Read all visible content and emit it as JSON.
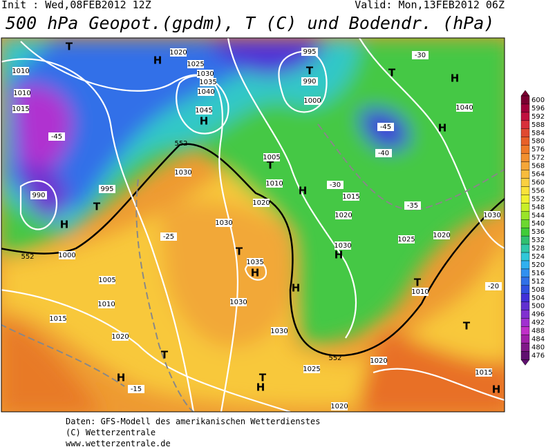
{
  "header": {
    "init": "Init : Wed,08FEB2012 12Z",
    "valid": "Valid: Mon,13FEB2012 06Z",
    "title": "500 hPa Geopot.(gpdm), T (C) und Bodendr. (hPa)"
  },
  "colorbar": {
    "levels": [
      600,
      596,
      592,
      588,
      584,
      580,
      576,
      572,
      568,
      564,
      560,
      556,
      552,
      548,
      544,
      540,
      536,
      532,
      528,
      524,
      520,
      516,
      512,
      508,
      504,
      500,
      496,
      492,
      488,
      484,
      480,
      476
    ],
    "colors": [
      "#7a0030",
      "#a0003a",
      "#c0103f",
      "#d8303a",
      "#e04a30",
      "#e86028",
      "#ef7a28",
      "#f29030",
      "#f5a638",
      "#f8bc3c",
      "#fad040",
      "#fae23a",
      "#f0f030",
      "#c8ee28",
      "#9ae428",
      "#6cd830",
      "#40cc38",
      "#30c070",
      "#30c8a8",
      "#30c8d8",
      "#30b0f0",
      "#3090f0",
      "#3070e8",
      "#3050e0",
      "#4030d8",
      "#6030d0",
      "#8030d0",
      "#a030d0",
      "#c030c8",
      "#a020a8",
      "#801888",
      "#601070"
    ]
  },
  "map": {
    "labels": [
      "T",
      "1010",
      "1015",
      "1010",
      "H",
      "1020",
      "1025",
      "1030",
      "1035",
      "1040",
      "1045",
      "H",
      "995",
      "T",
      "990",
      "1000",
      "T",
      "H",
      "1040",
      "H",
      "-45",
      "-40",
      "T",
      "1005",
      "1010",
      "1020",
      "H",
      "1015",
      "1020",
      "1030",
      "995",
      "T",
      "H",
      "1000",
      "990",
      "-45",
      "1030",
      "T",
      "1035",
      "H",
      "H",
      "1030",
      "H",
      "1030",
      "1030",
      "1025",
      "T",
      "1010",
      "1020",
      "1030",
      "1005",
      "1010",
      "1015",
      "1020",
      "T",
      "H",
      "-15",
      "T",
      "H",
      "1025",
      "1020",
      "T",
      "1015",
      "H",
      "1020",
      "-25",
      "-30",
      "-35",
      "-30",
      "-20",
      "552",
      "552",
      "552"
    ]
  },
  "footer": {
    "lines": [
      "Daten: GFS-Modell des amerikanischen Wetterdienstes",
      "(C) Wetterzentrale",
      "www.wetterzentrale.de"
    ]
  }
}
